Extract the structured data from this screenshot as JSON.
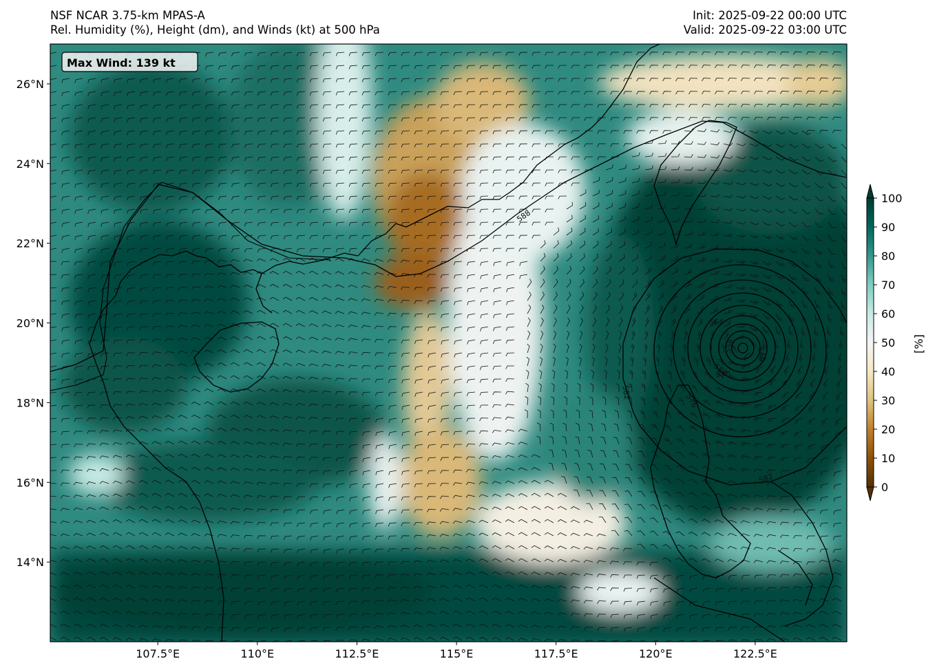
{
  "header": {
    "left_line1": "NSF NCAR 3.75-km MPAS-A",
    "left_line2": "Rel. Humidity (%), Height (dm), and Winds (kt) at 500 hPa",
    "right_line1": "Init: 2025-09-22 00:00 UTC",
    "right_line2": "Valid: 2025-09-22 03:00 UTC"
  },
  "annotation": {
    "max_wind": "Max Wind: 139 kt"
  },
  "axes": {
    "lon_ticks": [
      "107.5°E",
      "110°E",
      "112.5°E",
      "115°E",
      "117.5°E",
      "120°E",
      "122.5°E"
    ],
    "lat_ticks": [
      "26°N",
      "24°N",
      "22°N",
      "20°N",
      "18°N",
      "16°N",
      "14°N"
    ],
    "lon_values": [
      107.5,
      110,
      112.5,
      115,
      117.5,
      120,
      122.5
    ],
    "lat_values": [
      26,
      24,
      22,
      20,
      18,
      16,
      14
    ],
    "lon_range": [
      104.8,
      124.8
    ],
    "lat_range": [
      12.0,
      27.0
    ]
  },
  "colorbar": {
    "label": "[%]",
    "ticks": [
      "100",
      "90",
      "80",
      "70",
      "60",
      "50",
      "40",
      "30",
      "20",
      "10",
      "0"
    ],
    "tick_values": [
      100,
      90,
      80,
      70,
      60,
      50,
      40,
      30,
      20,
      10,
      0
    ],
    "range": [
      0,
      100
    ],
    "colormap": "BrBG",
    "colors": [
      "#543005",
      "#8c510a",
      "#bf812d",
      "#dfc27d",
      "#f6e8c3",
      "#f5f5f5",
      "#c7eae5",
      "#80cdc1",
      "#35978f",
      "#01665e",
      "#003c30"
    ]
  },
  "contours": {
    "labels": [
      "588",
      "582",
      "582",
      "576",
      "570",
      "564",
      "558",
      "546",
      "588"
    ]
  }
}
